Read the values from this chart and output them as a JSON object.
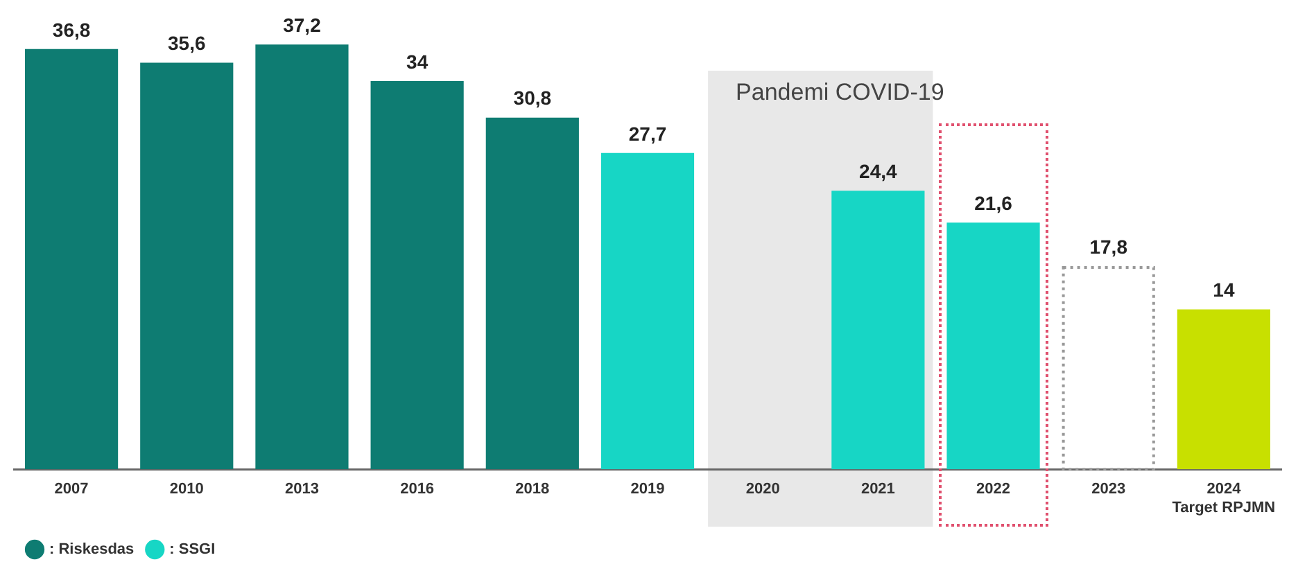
{
  "chart_data": {
    "type": "bar",
    "categories": [
      "2007",
      "2010",
      "2013",
      "2016",
      "2018",
      "2019",
      "2020",
      "2021",
      "2022",
      "2023",
      "2024\nTarget RPJMN"
    ],
    "series": [
      {
        "name": ": Riskesdas",
        "color": "#0e7c72",
        "values": [
          36.8,
          35.6,
          37.2,
          34,
          30.8,
          null,
          null,
          null,
          null,
          null,
          null
        ],
        "value_labels": [
          "36,8",
          "35,6",
          "37,2",
          "34",
          "30,8",
          null,
          null,
          null,
          null,
          null,
          null
        ]
      },
      {
        "name": ": SSGI",
        "color": "#17d6c5",
        "values": [
          null,
          null,
          null,
          null,
          null,
          27.7,
          null,
          24.4,
          21.6,
          null,
          null
        ],
        "value_labels": [
          null,
          null,
          null,
          null,
          null,
          "27,7",
          null,
          "24,4",
          "21,6",
          null,
          null
        ]
      },
      {
        "color": "#999999",
        "line_style": "dotted",
        "values": [
          null,
          null,
          null,
          null,
          null,
          null,
          null,
          null,
          null,
          17.8,
          null
        ],
        "value_labels": [
          null,
          null,
          null,
          null,
          null,
          null,
          null,
          null,
          null,
          "17,8",
          null
        ]
      },
      {
        "color": "#c8e000",
        "values": [
          null,
          null,
          null,
          null,
          null,
          null,
          null,
          null,
          null,
          null,
          14
        ],
        "value_labels": [
          null,
          null,
          null,
          null,
          null,
          null,
          null,
          null,
          null,
          null,
          "14"
        ]
      }
    ],
    "bands": [
      {
        "axis": "x",
        "from": "2020",
        "to": "2021",
        "label": "Pandemi COVID-19",
        "color": "#e8e8e8"
      }
    ],
    "tick_labels": "x",
    "grid": false,
    "legend": "bottom left"
  }
}
